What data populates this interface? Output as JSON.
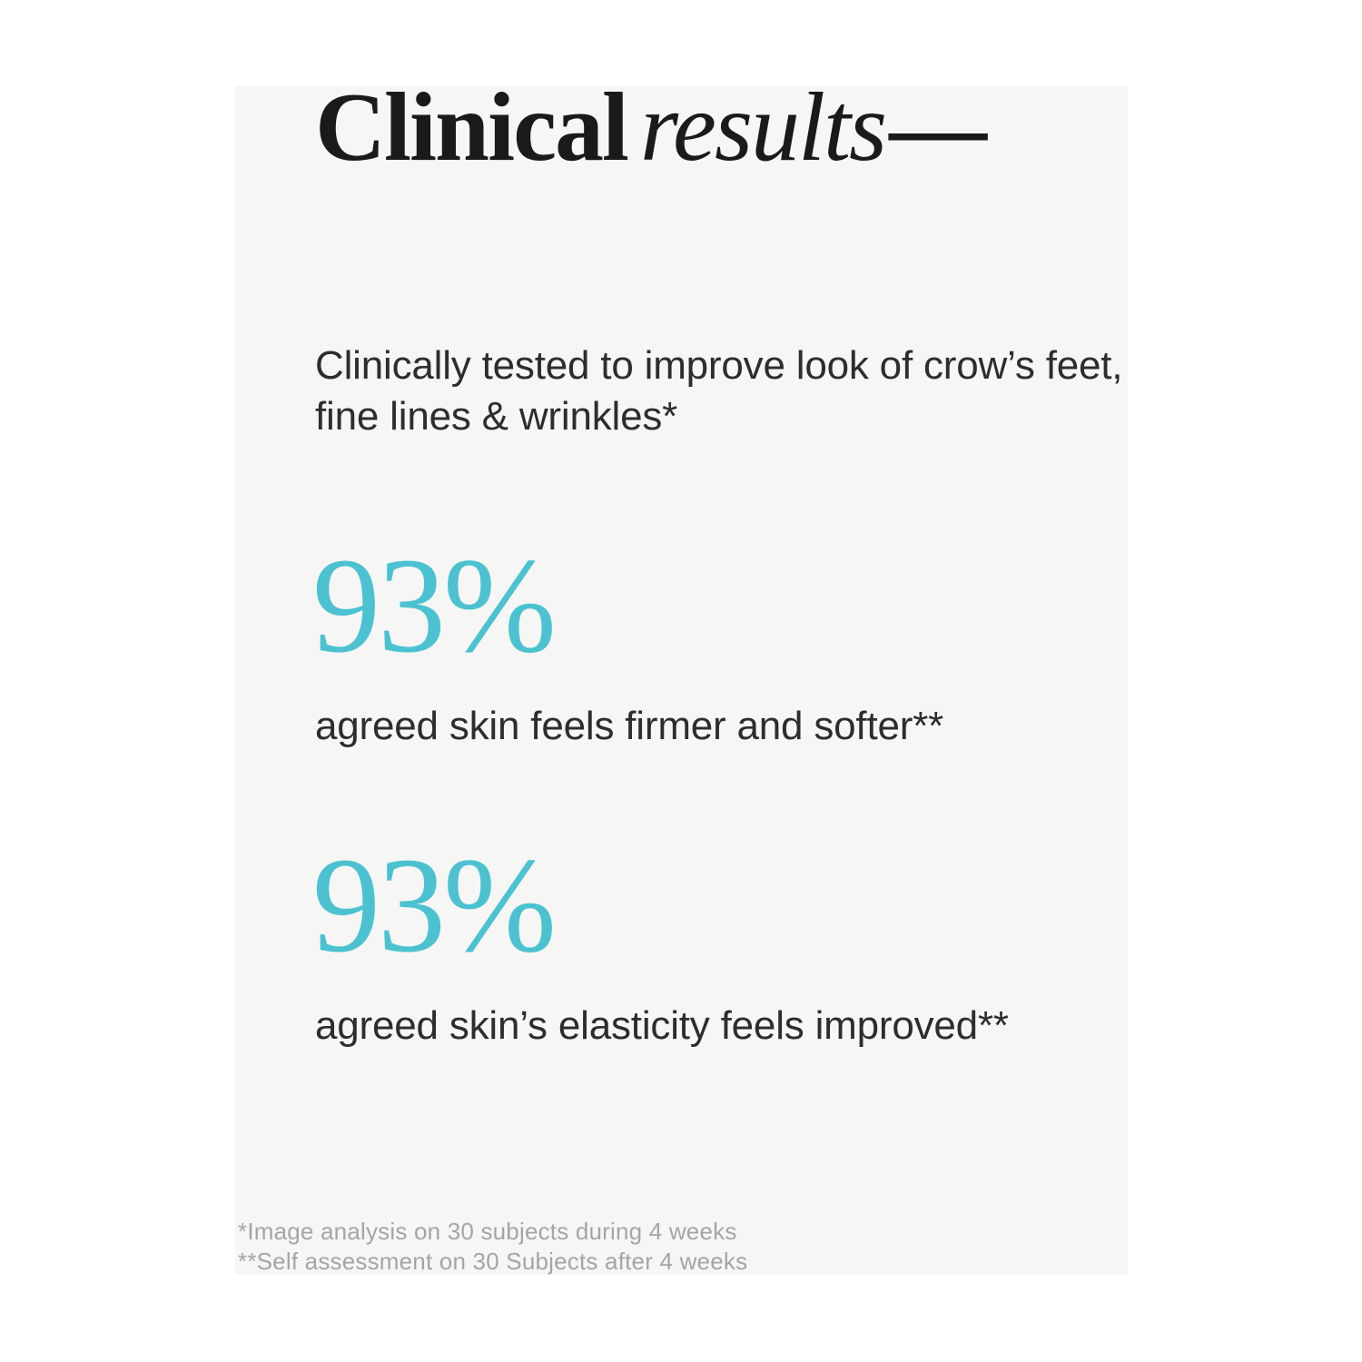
{
  "panel": {
    "background": "#F6F6F5"
  },
  "title": {
    "regular": "Clinical",
    "italic": "results",
    "dash": "—"
  },
  "intro": {
    "lines": [
      "Clinically tested to improve look of crow’s feet,",
      "fine lines & wrinkles*"
    ]
  },
  "stats": [
    {
      "value": "93%",
      "label": "agreed skin feels firmer and softer**"
    },
    {
      "value": "93%",
      "label": "agreed skin’s elasticity feels improved**"
    }
  ],
  "footnotes": [
    "*Image analysis on 30 subjects during 4 weeks",
    "**Self assessment on 30 Subjects after 4 weeks"
  ],
  "colors": {
    "accent": "#4CC2D1",
    "heading": "#1A1A1A",
    "body": "#2D2D2D",
    "footnote": "#A5A5A5",
    "panel": "#F6F6F5",
    "page": "#FFFFFF"
  }
}
